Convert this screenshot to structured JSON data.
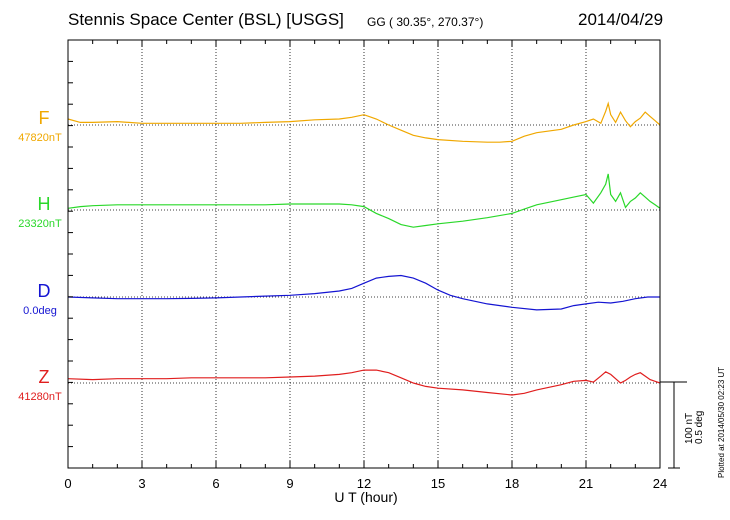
{
  "header": {
    "station": "Stennis Space Center (BSL)  [USGS]",
    "coords": "GG ( 30.35°, 270.37°)",
    "date": "2014/04/29"
  },
  "footer": {
    "plotted": "Plotted at 2014/05/30 02:23 UT"
  },
  "scale_bar": {
    "label_nt": "100 nT",
    "label_deg": "0.5 deg"
  },
  "chart_data": {
    "type": "line",
    "xlabel": "U T (hour)",
    "xlim": [
      0,
      24
    ],
    "xticks": [
      "0",
      "3",
      "6",
      "9",
      "12",
      "15",
      "18",
      "21",
      "24"
    ],
    "grid": true,
    "series": [
      {
        "name": "F",
        "baseline_label": "47820nT",
        "units": "nT",
        "baseline": 47820,
        "color": "#f0a800",
        "x": [
          0,
          0.5,
          1,
          2,
          3,
          4,
          5,
          6,
          7,
          8,
          9,
          10,
          11,
          11.5,
          12,
          12.5,
          13,
          13.5,
          14,
          14.5,
          15,
          16,
          17,
          17.5,
          18,
          18.5,
          19,
          20,
          20.5,
          21,
          21.3,
          21.6,
          21.8,
          21.9,
          22,
          22.2,
          22.4,
          22.6,
          22.8,
          23,
          23.2,
          23.4,
          23.6,
          23.8,
          24
        ],
        "values": [
          7,
          3,
          3,
          4,
          2,
          2,
          2,
          2,
          2,
          3,
          4,
          6,
          7,
          9,
          12,
          7,
          0,
          -6,
          -12,
          -15,
          -17,
          -19,
          -20,
          -20,
          -19,
          -13,
          -9,
          -5,
          0,
          4,
          7,
          2,
          16,
          25,
          12,
          3,
          15,
          5,
          -2,
          4,
          8,
          15,
          10,
          5,
          0
        ]
      },
      {
        "name": "H",
        "baseline_label": "23320nT",
        "units": "nT",
        "baseline": 23320,
        "color": "#2ad82a",
        "x": [
          0,
          0.5,
          1,
          2,
          3,
          4,
          5,
          6,
          7,
          8,
          9,
          10,
          11,
          11.5,
          12,
          12.5,
          13,
          13.5,
          14,
          14.5,
          15,
          16,
          17,
          18,
          18.5,
          19,
          20,
          20.5,
          21,
          21.3,
          21.6,
          21.8,
          21.9,
          22,
          22.2,
          22.4,
          22.6,
          22.8,
          23,
          23.2,
          23.4,
          23.6,
          23.8,
          24
        ],
        "values": [
          2,
          4,
          5,
          6,
          6,
          6,
          6,
          6,
          6,
          6,
          7,
          7,
          7,
          6,
          4,
          -4,
          -10,
          -17,
          -20,
          -18,
          -16,
          -13,
          -9,
          -4,
          1,
          6,
          12,
          15,
          18,
          8,
          20,
          30,
          42,
          18,
          10,
          20,
          3,
          10,
          14,
          20,
          15,
          10,
          6,
          2
        ]
      },
      {
        "name": "D",
        "baseline_label": "0.0deg",
        "units": "deg",
        "baseline": 0.0,
        "color": "#1414d2",
        "x": [
          0,
          1,
          2,
          3,
          4,
          5,
          6,
          7,
          8,
          9,
          10,
          11,
          11.5,
          12,
          12.5,
          13,
          13.5,
          14,
          14.5,
          15,
          15.5,
          16,
          17,
          18,
          19,
          20,
          20.5,
          21,
          21.5,
          22,
          22.5,
          23,
          23.5,
          24
        ],
        "values": [
          0,
          -0.005,
          -0.01,
          -0.01,
          -0.01,
          -0.008,
          -0.005,
          0.0,
          0.005,
          0.01,
          0.02,
          0.035,
          0.05,
          0.08,
          0.11,
          0.12,
          0.125,
          0.11,
          0.08,
          0.04,
          0.01,
          -0.01,
          -0.04,
          -0.06,
          -0.075,
          -0.07,
          -0.05,
          -0.04,
          -0.03,
          -0.035,
          -0.025,
          -0.01,
          0.0,
          0.0
        ]
      },
      {
        "name": "Z",
        "baseline_label": "41280nT",
        "units": "nT",
        "baseline": 41280,
        "color": "#e01e1e",
        "x": [
          0,
          1,
          2,
          3,
          4,
          5,
          6,
          7,
          8,
          9,
          10,
          11,
          11.5,
          12,
          12.5,
          13,
          13.5,
          14,
          14.5,
          15,
          16,
          17,
          18,
          18.5,
          19,
          20,
          20.5,
          21,
          21.3,
          21.6,
          21.8,
          22,
          22.2,
          22.4,
          22.6,
          22.8,
          23,
          23.2,
          23.4,
          23.6,
          23.8,
          24
        ],
        "values": [
          5,
          4,
          5,
          5,
          5,
          6,
          6,
          6,
          6,
          7,
          8,
          10,
          12,
          15,
          15,
          12,
          6,
          0,
          -4,
          -6,
          -8,
          -11,
          -14,
          -12,
          -8,
          -2,
          2,
          3,
          1,
          8,
          13,
          10,
          5,
          0,
          3,
          7,
          10,
          12,
          8,
          4,
          2,
          0
        ]
      }
    ]
  }
}
